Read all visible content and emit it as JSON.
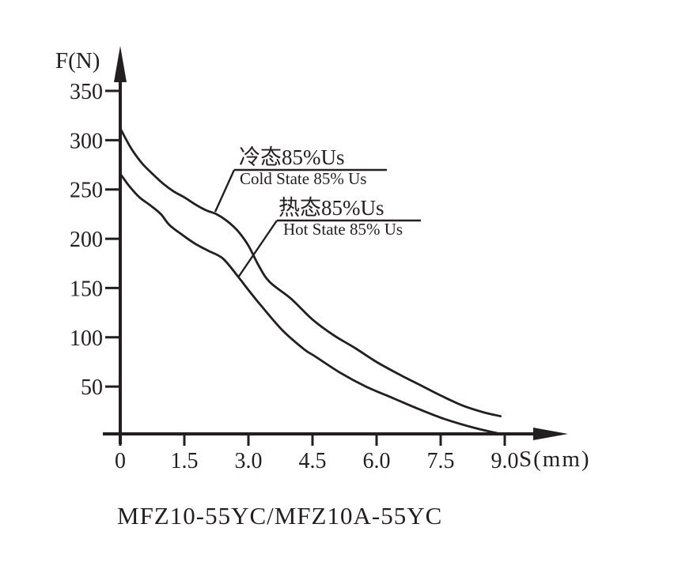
{
  "chart_data": {
    "type": "line",
    "title": "MFZ10-55YC/MFZ10A-55YC",
    "xlabel": "S(mm)",
    "ylabel": "F(N)",
    "xlim": [
      0,
      9.0
    ],
    "ylim": [
      0,
      350
    ],
    "x_tick_labels": [
      "0",
      "1.5",
      "3.0",
      "4.5",
      "6.0",
      "7.5",
      "9.0"
    ],
    "x_ticks": [
      0,
      1.5,
      3.0,
      4.5,
      6.0,
      7.5,
      9.0
    ],
    "y_ticks": [
      350,
      300,
      250,
      200,
      150,
      100,
      50
    ],
    "grid": false,
    "legend_position": "inline-callouts",
    "line_color": "#231f20",
    "series": [
      {
        "id": "cold",
        "label_cn": "冷态85%Us",
        "label_en": "Cold State 85% Us",
        "points": [
          [
            0,
            312
          ],
          [
            0.25,
            292
          ],
          [
            0.5,
            277
          ],
          [
            0.75,
            266
          ],
          [
            1.0,
            256
          ],
          [
            1.25,
            248
          ],
          [
            1.5,
            242
          ],
          [
            1.75,
            235
          ],
          [
            2.0,
            229
          ],
          [
            2.25,
            225
          ],
          [
            2.5,
            218
          ],
          [
            2.75,
            208
          ],
          [
            3.0,
            193
          ],
          [
            3.25,
            172
          ],
          [
            3.5,
            156
          ],
          [
            4.0,
            139
          ],
          [
            4.5,
            118
          ],
          [
            5.0,
            102
          ],
          [
            5.5,
            89
          ],
          [
            6.0,
            75
          ],
          [
            6.5,
            63
          ],
          [
            7.0,
            52
          ],
          [
            7.5,
            41
          ],
          [
            8.0,
            31
          ],
          [
            8.5,
            24
          ],
          [
            8.9,
            20
          ]
        ]
      },
      {
        "id": "hot",
        "label_cn": "热态85%Us",
        "label_en": "Hot State 85% Us",
        "points": [
          [
            0,
            266
          ],
          [
            0.2,
            254
          ],
          [
            0.45,
            242
          ],
          [
            0.7,
            234
          ],
          [
            0.95,
            225
          ],
          [
            1.15,
            214
          ],
          [
            1.45,
            204
          ],
          [
            1.75,
            195
          ],
          [
            2.05,
            188
          ],
          [
            2.4,
            180
          ],
          [
            2.75,
            162
          ],
          [
            3.0,
            148
          ],
          [
            3.3,
            132
          ],
          [
            3.8,
            107
          ],
          [
            4.3,
            88
          ],
          [
            4.55,
            81
          ],
          [
            5.15,
            64
          ],
          [
            5.75,
            50
          ],
          [
            6.4,
            38
          ],
          [
            7.0,
            27
          ],
          [
            7.6,
            17
          ],
          [
            8.3,
            8
          ],
          [
            8.9,
            2
          ]
        ]
      }
    ]
  }
}
